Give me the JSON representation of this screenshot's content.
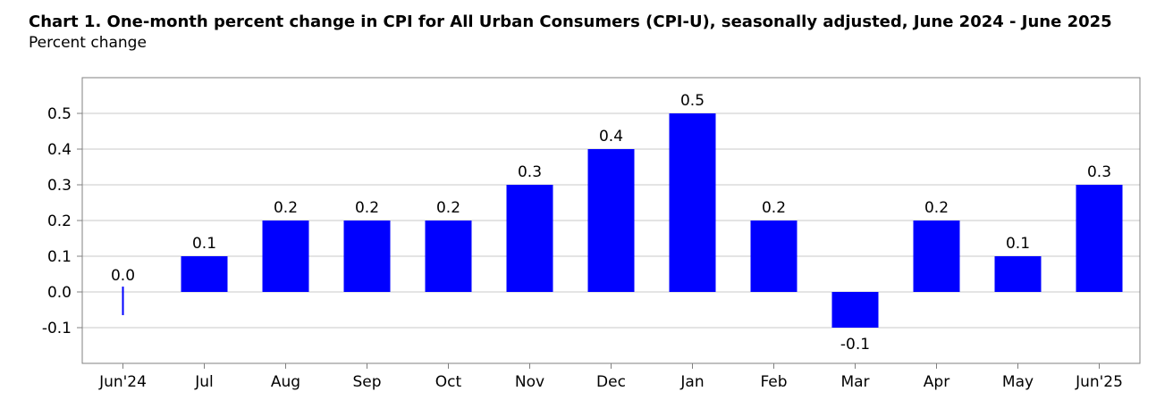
{
  "chart_data": {
    "type": "bar",
    "title": "Chart 1. One-month percent change in CPI for All Urban Consumers (CPI-U), seasonally adjusted, June 2024 - June 2025",
    "subtitle": "Percent change",
    "categories": [
      "Jun'24",
      "Jul",
      "Aug",
      "Sep",
      "Oct",
      "Nov",
      "Dec",
      "Jan",
      "Feb",
      "Mar",
      "Apr",
      "May",
      "Jun'25"
    ],
    "values": [
      0.0,
      0.1,
      0.2,
      0.2,
      0.2,
      0.3,
      0.4,
      0.5,
      0.2,
      -0.1,
      0.2,
      0.1,
      0.3
    ],
    "data_labels": [
      "0.0",
      "0.1",
      "0.2",
      "0.2",
      "0.2",
      "0.3",
      "0.4",
      "0.5",
      "0.2",
      "-0.1",
      "0.2",
      "0.1",
      "0.3"
    ],
    "xlabel": "",
    "ylabel": "",
    "ylim": [
      -0.2,
      0.6
    ],
    "yticks": [
      -0.1,
      0.0,
      0.1,
      0.2,
      0.3,
      0.4,
      0.5
    ],
    "ytick_labels": [
      "-0.1",
      "0.0",
      "0.1",
      "0.2",
      "0.3",
      "0.4",
      "0.5"
    ],
    "grid": true,
    "legend": "none",
    "bar_color": "#0000FF",
    "grid_color": "#C8C8C8",
    "axis_color": "#808080"
  }
}
